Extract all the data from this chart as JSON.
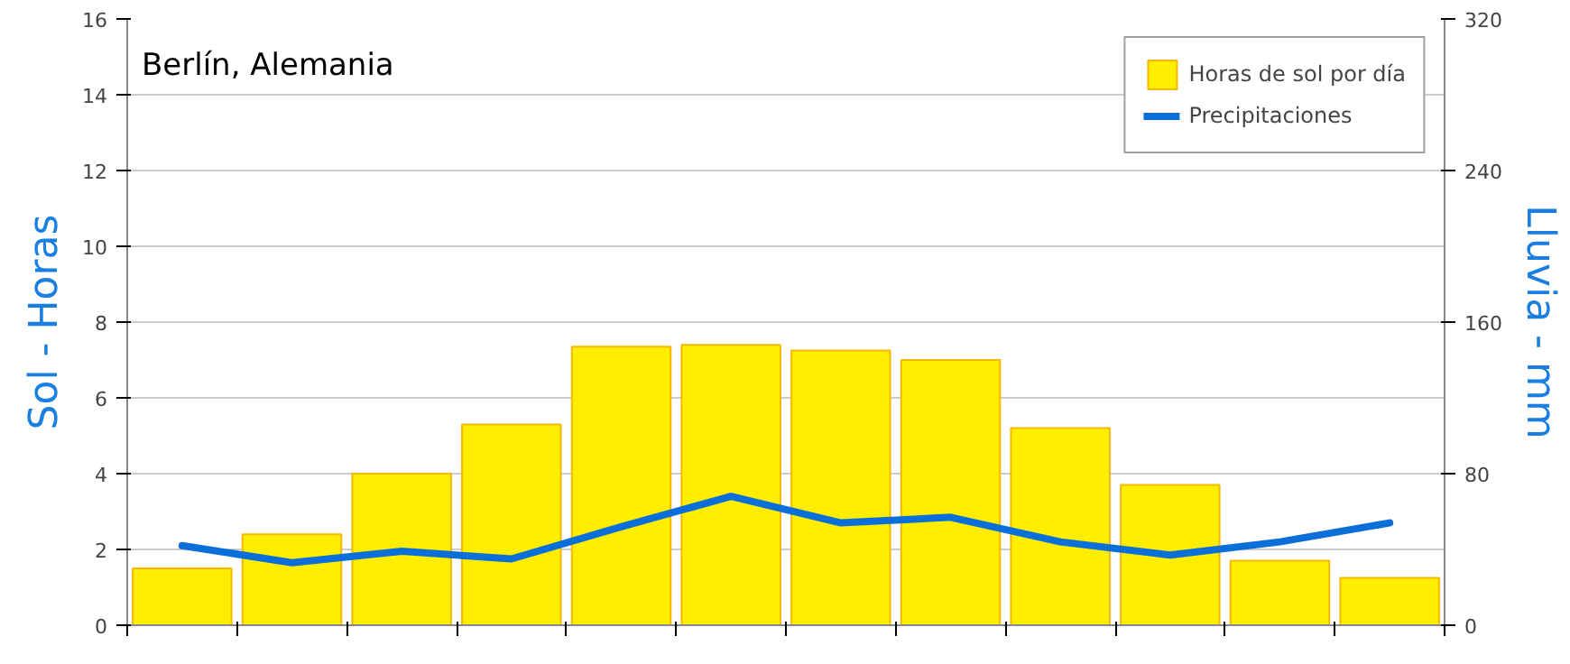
{
  "chart_data": {
    "type": "bar",
    "title": "Berlín, Alemania",
    "ylabel": "Sol - Horas",
    "y2label": "Lluvia - mm",
    "categories": [
      null,
      null,
      null,
      null,
      null,
      null,
      null,
      null,
      null,
      null,
      null,
      null
    ],
    "series": [
      {
        "name": "Horas de sol por día",
        "color": "#ffee00",
        "values": [
          1.5,
          2.4,
          4.0,
          5.3,
          7.35,
          7.4,
          7.25,
          7.0,
          5.2,
          3.7,
          1.7,
          1.25
        ]
      },
      {
        "name": "Precipitaciones",
        "type": "line",
        "axis": "y2",
        "color": "#0a6fd8",
        "values": [
          42,
          33,
          39,
          35,
          52,
          68,
          54,
          57,
          44,
          37,
          44,
          54
        ]
      }
    ],
    "ylim": [
      0,
      16
    ],
    "yticks": [
      0,
      2,
      4,
      6,
      8,
      10,
      12,
      14,
      16
    ],
    "y2lim": [
      0,
      320
    ],
    "y2ticks": [
      0,
      80,
      160,
      240,
      320
    ],
    "grid": "y",
    "legend": "top right"
  }
}
